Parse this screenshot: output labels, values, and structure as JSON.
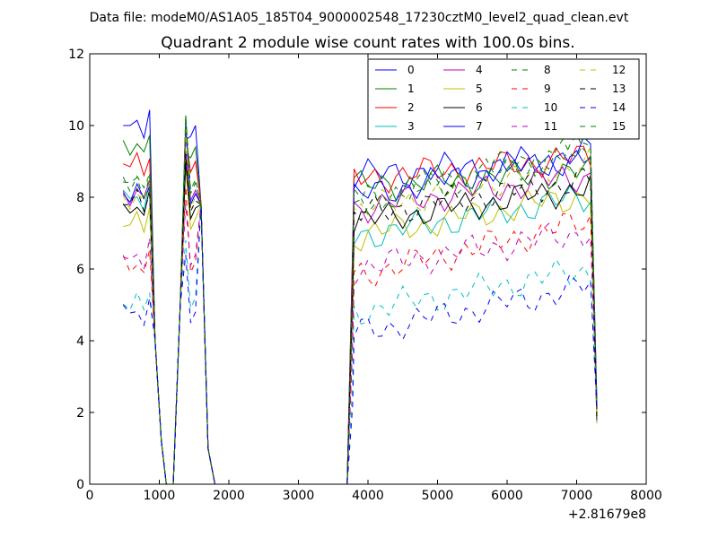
{
  "chart_data": {
    "type": "line",
    "suptitle": "Data file: modeM0/AS1A05_185T04_9000002548_17230cztM0_level2_quad_clean.evt",
    "title": "Quadrant 2 module wise count rates with 100.0s bins.",
    "xlabel": "",
    "ylabel": "",
    "x_offset_label": "+2.81679e8",
    "xlim": [
      0,
      8000
    ],
    "ylim": [
      0,
      12
    ],
    "x_ticks": [
      "0",
      "1000",
      "2000",
      "3000",
      "4000",
      "5000",
      "6000",
      "7000",
      "8000"
    ],
    "y_ticks": [
      "0",
      "2",
      "4",
      "6",
      "8",
      "10",
      "12"
    ],
    "legend_placement": "top-right",
    "grid": false,
    "series": [
      {
        "name": "0",
        "color": "#0000ff",
        "dash": "solid",
        "level": 8.9,
        "p1": 10.0,
        "p2": 9.6,
        "amp": 0.3
      },
      {
        "name": "1",
        "color": "#008000",
        "dash": "solid",
        "level": 8.6,
        "p1": 9.4,
        "p2": 9.2,
        "amp": 0.3
      },
      {
        "name": "2",
        "color": "#ff0000",
        "dash": "solid",
        "level": 8.8,
        "p1": 9.0,
        "p2": 9.7,
        "amp": 0.3
      },
      {
        "name": "3",
        "color": "#00bfbf",
        "dash": "solid",
        "level": 7.2,
        "p1": 8.1,
        "p2": 8.8,
        "amp": 0.3
      },
      {
        "name": "4",
        "color": "#bf00bf",
        "dash": "solid",
        "level": 8.0,
        "p1": 8.2,
        "p2": 9.3,
        "amp": 0.3
      },
      {
        "name": "5",
        "color": "#bfbf00",
        "dash": "solid",
        "level": 7.2,
        "p1": 7.4,
        "p2": 8.9,
        "amp": 0.3
      },
      {
        "name": "6",
        "color": "#000000",
        "dash": "solid",
        "level": 7.6,
        "p1": 7.7,
        "p2": 9.0,
        "amp": 0.3
      },
      {
        "name": "7",
        "color": "#0000ff",
        "dash": "solid",
        "level": 8.3,
        "p1": 8.1,
        "p2": 10.1,
        "amp": 0.3
      },
      {
        "name": "8",
        "color": "#008000",
        "dash": "dashed",
        "level": 8.2,
        "p1": 8.4,
        "p2": 10.3,
        "amp": 0.3
      },
      {
        "name": "9",
        "color": "#ff0000",
        "dash": "dashed",
        "level": 6.1,
        "p1": 6.2,
        "p2": 8.3,
        "amp": 0.3
      },
      {
        "name": "10",
        "color": "#00bfbf",
        "dash": "dashed",
        "level": 5.1,
        "p1": 5.2,
        "p2": 6.8,
        "amp": 0.3
      },
      {
        "name": "11",
        "color": "#bf00bf",
        "dash": "dashed",
        "level": 6.3,
        "p1": 6.4,
        "p2": 7.8,
        "amp": 0.3
      },
      {
        "name": "12",
        "color": "#bfbf00",
        "dash": "dashed",
        "level": 7.9,
        "p1": 8.0,
        "p2": 9.9,
        "amp": 0.3
      },
      {
        "name": "13",
        "color": "#000000",
        "dash": "dashed",
        "level": 7.8,
        "p1": 7.9,
        "p2": 9.2,
        "amp": 0.3
      },
      {
        "name": "14",
        "color": "#0000ff",
        "dash": "dashed",
        "level": 4.5,
        "p1": 4.8,
        "p2": 6.4,
        "amp": 0.3
      },
      {
        "name": "15",
        "color": "#008000",
        "dash": "dashed",
        "level": 8.1,
        "p1": 8.5,
        "p2": 10.3,
        "amp": 0.3
      }
    ]
  }
}
